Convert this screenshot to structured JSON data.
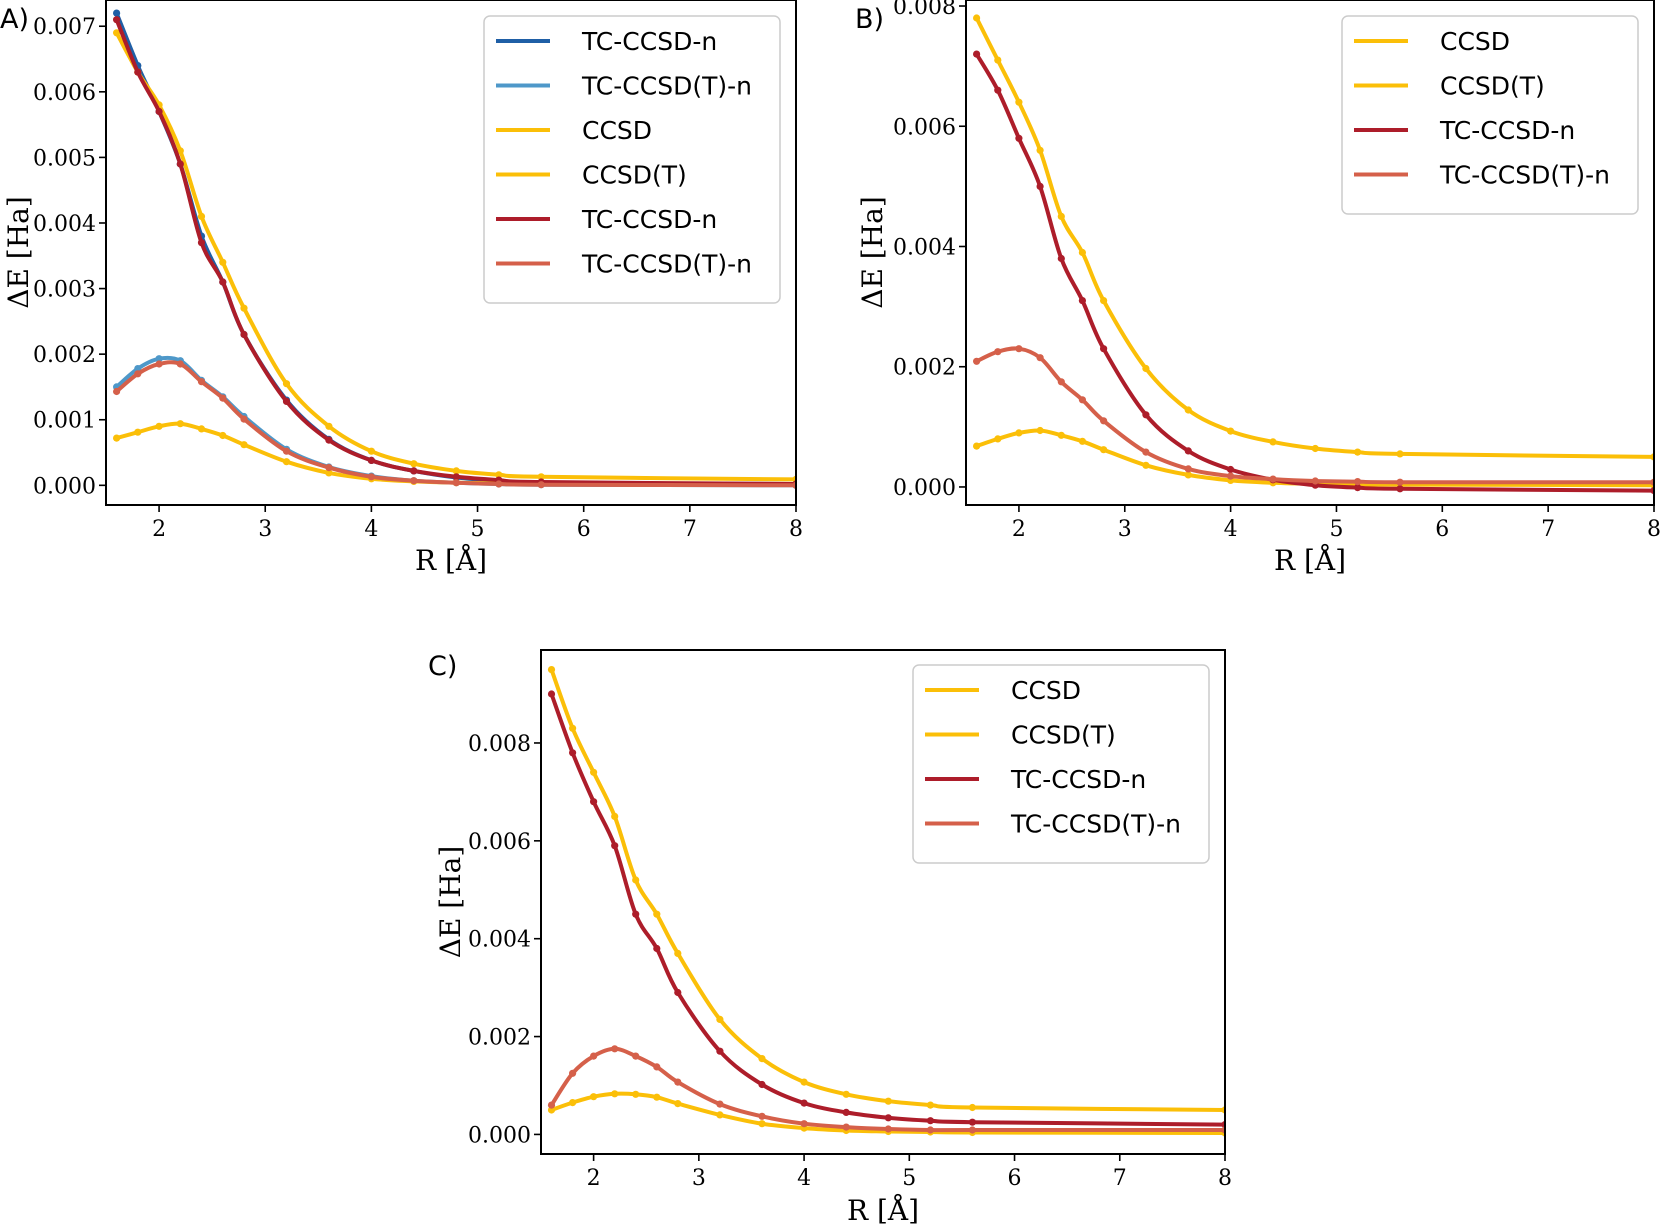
{
  "chart_data": [
    {
      "id": "A",
      "type": "line",
      "panel_label": "A)",
      "xlabel": "R [Å]",
      "ylabel": "ΔE [Ha]",
      "xlim": [
        1.5,
        8
      ],
      "ylim": [
        -0.0003,
        0.0074
      ],
      "xticks": [
        2,
        3,
        4,
        5,
        6,
        7,
        8
      ],
      "xtick_labels": [
        "2",
        "3",
        "4",
        "5",
        "6",
        "7",
        "8"
      ],
      "yticks": [
        0,
        0.001,
        0.002,
        0.003,
        0.004,
        0.005,
        0.006,
        0.007
      ],
      "ytick_labels": [
        "0.000",
        "0.001",
        "0.002",
        "0.003",
        "0.004",
        "0.005",
        "0.006",
        "0.007"
      ],
      "legend_position": "top-right",
      "series": [
        {
          "name": "TC-CCSD-n",
          "color": "#1f5fa6",
          "x": [
            1.6,
            1.8,
            2.0,
            2.2,
            2.4,
            2.6,
            2.8,
            3.2,
            3.6,
            4.0,
            4.4,
            4.8,
            5.2,
            5.6,
            8.0
          ],
          "y": [
            0.0072,
            0.0064,
            0.0057,
            0.0049,
            0.0038,
            0.0031,
            0.0023,
            0.0013,
            0.0007,
            0.00038,
            0.00022,
            0.00012,
            7e-05,
            4e-05,
            2e-05
          ]
        },
        {
          "name": "TC-CCSD(T)-n",
          "color": "#4e98c9",
          "x": [
            1.6,
            1.8,
            2.0,
            2.2,
            2.4,
            2.6,
            2.8,
            3.2,
            3.6,
            4.0,
            4.4,
            4.8,
            5.2,
            5.6,
            8.0
          ],
          "y": [
            0.0015,
            0.00178,
            0.00193,
            0.0019,
            0.0016,
            0.00135,
            0.00105,
            0.00055,
            0.00028,
            0.00014,
            7e-05,
            4e-05,
            2e-05,
            1e-05,
            0.0
          ]
        },
        {
          "name": "CCSD",
          "color": "#fbbf08",
          "x": [
            1.6,
            1.8,
            2.0,
            2.2,
            2.4,
            2.6,
            2.8,
            3.2,
            3.6,
            4.0,
            4.4,
            4.8,
            5.2,
            5.6,
            8.0
          ],
          "y": [
            0.0069,
            0.0063,
            0.0058,
            0.0051,
            0.0041,
            0.0034,
            0.0027,
            0.00155,
            0.0009,
            0.00052,
            0.00033,
            0.00022,
            0.00016,
            0.00013,
            9e-05
          ]
        },
        {
          "name": "CCSD(T)",
          "color": "#fbbf08",
          "x": [
            1.6,
            1.8,
            2.0,
            2.2,
            2.4,
            2.6,
            2.8,
            3.2,
            3.6,
            4.0,
            4.4,
            4.8,
            5.2,
            5.6,
            8.0
          ],
          "y": [
            0.00072,
            0.00081,
            0.0009,
            0.00094,
            0.00086,
            0.00076,
            0.00062,
            0.00036,
            0.00019,
            0.0001,
            6e-05,
            4e-05,
            3e-05,
            2e-05,
            1e-05
          ]
        },
        {
          "name": "TC-CCSD-n",
          "color": "#ad1d2a",
          "x": [
            1.6,
            1.8,
            2.0,
            2.2,
            2.4,
            2.6,
            2.8,
            3.2,
            3.6,
            4.0,
            4.4,
            4.8,
            5.2,
            5.6,
            8.0
          ],
          "y": [
            0.0071,
            0.0063,
            0.0057,
            0.0049,
            0.0037,
            0.0031,
            0.0023,
            0.00128,
            0.00069,
            0.00038,
            0.00022,
            0.00013,
            8e-05,
            5e-05,
            2e-05
          ]
        },
        {
          "name": "TC-CCSD(T)-n",
          "color": "#d5604a",
          "x": [
            1.6,
            1.8,
            2.0,
            2.2,
            2.4,
            2.6,
            2.8,
            3.2,
            3.6,
            4.0,
            4.4,
            4.8,
            5.2,
            5.6,
            8.0
          ],
          "y": [
            0.00143,
            0.0017,
            0.00185,
            0.00185,
            0.00158,
            0.00133,
            0.00101,
            0.00052,
            0.00027,
            0.00013,
            7e-05,
            4e-05,
            2e-05,
            1e-05,
            0.0
          ]
        }
      ]
    },
    {
      "id": "B",
      "type": "line",
      "panel_label": "B)",
      "xlabel": "R [Å]",
      "ylabel": "ΔE [Ha]",
      "xlim": [
        1.5,
        8
      ],
      "ylim": [
        -0.0003,
        0.0081
      ],
      "xticks": [
        2,
        3,
        4,
        5,
        6,
        7,
        8
      ],
      "xtick_labels": [
        "2",
        "3",
        "4",
        "5",
        "6",
        "7",
        "8"
      ],
      "yticks": [
        0,
        0.002,
        0.004,
        0.006,
        0.008
      ],
      "ytick_labels": [
        "0.000",
        "0.002",
        "0.004",
        "0.006",
        "0.008"
      ],
      "legend_position": "top-right",
      "series": [
        {
          "name": "CCSD",
          "color": "#fbbf08",
          "x": [
            1.6,
            1.8,
            2.0,
            2.2,
            2.4,
            2.6,
            2.8,
            3.2,
            3.6,
            4.0,
            4.4,
            4.8,
            5.2,
            5.6,
            8.0
          ],
          "y": [
            0.0078,
            0.0071,
            0.0064,
            0.0056,
            0.0045,
            0.0039,
            0.0031,
            0.00197,
            0.00128,
            0.00093,
            0.00075,
            0.00064,
            0.00058,
            0.00055,
            0.0005
          ]
        },
        {
          "name": "CCSD(T)",
          "color": "#fbbf08",
          "x": [
            1.6,
            1.8,
            2.0,
            2.2,
            2.4,
            2.6,
            2.8,
            3.2,
            3.6,
            4.0,
            4.4,
            4.8,
            5.2,
            5.6,
            8.0
          ],
          "y": [
            0.00068,
            0.0008,
            0.0009,
            0.00094,
            0.00086,
            0.00076,
            0.00062,
            0.00036,
            0.0002,
            0.00011,
            7e-05,
            5e-05,
            4e-05,
            4e-05,
            3e-05
          ]
        },
        {
          "name": "TC-CCSD-n",
          "color": "#ad1d2a",
          "x": [
            1.6,
            1.8,
            2.0,
            2.2,
            2.4,
            2.6,
            2.8,
            3.2,
            3.6,
            4.0,
            4.4,
            4.8,
            5.2,
            5.6,
            8.0
          ],
          "y": [
            0.0072,
            0.0066,
            0.0058,
            0.005,
            0.0038,
            0.0031,
            0.0023,
            0.0012,
            0.0006,
            0.00029,
            0.00012,
            3e-05,
            -1e-05,
            -3e-05,
            -6e-05
          ]
        },
        {
          "name": "TC-CCSD(T)-n",
          "color": "#d5604a",
          "x": [
            1.6,
            1.8,
            2.0,
            2.2,
            2.4,
            2.6,
            2.8,
            3.2,
            3.6,
            4.0,
            4.4,
            4.8,
            5.2,
            5.6,
            8.0
          ],
          "y": [
            0.00209,
            0.00225,
            0.0023,
            0.00215,
            0.00175,
            0.00145,
            0.0011,
            0.00058,
            0.0003,
            0.00018,
            0.00013,
            0.0001,
            9e-05,
            8e-05,
            8e-05
          ]
        }
      ]
    },
    {
      "id": "C",
      "type": "line",
      "panel_label": "C)",
      "xlabel": "R [Å]",
      "ylabel": "ΔE [Ha]",
      "xlim": [
        1.5,
        8
      ],
      "ylim": [
        -0.0004,
        0.0099
      ],
      "xticks": [
        2,
        3,
        4,
        5,
        6,
        7,
        8
      ],
      "xtick_labels": [
        "2",
        "3",
        "4",
        "5",
        "6",
        "7",
        "8"
      ],
      "yticks": [
        0,
        0.002,
        0.004,
        0.006,
        0.008
      ],
      "ytick_labels": [
        "0.000",
        "0.002",
        "0.004",
        "0.006",
        "0.008"
      ],
      "legend_position": "top-right",
      "series": [
        {
          "name": "CCSD",
          "color": "#fbbf08",
          "x": [
            1.6,
            1.8,
            2.0,
            2.2,
            2.4,
            2.6,
            2.8,
            3.2,
            3.6,
            4.0,
            4.4,
            4.8,
            5.2,
            5.6,
            8.0
          ],
          "y": [
            0.0095,
            0.0083,
            0.0074,
            0.0065,
            0.0052,
            0.0045,
            0.0037,
            0.00235,
            0.00155,
            0.00107,
            0.00082,
            0.00068,
            0.0006,
            0.00055,
            0.0005
          ]
        },
        {
          "name": "CCSD(T)",
          "color": "#fbbf08",
          "x": [
            1.6,
            1.8,
            2.0,
            2.2,
            2.4,
            2.6,
            2.8,
            3.2,
            3.6,
            4.0,
            4.4,
            4.8,
            5.2,
            5.6,
            8.0
          ],
          "y": [
            0.0005,
            0.00065,
            0.00077,
            0.00083,
            0.00082,
            0.00076,
            0.00063,
            0.0004,
            0.00022,
            0.00013,
            8e-05,
            6e-05,
            5e-05,
            4e-05,
            3e-05
          ]
        },
        {
          "name": "TC-CCSD-n",
          "color": "#ad1d2a",
          "x": [
            1.6,
            1.8,
            2.0,
            2.2,
            2.4,
            2.6,
            2.8,
            3.2,
            3.6,
            4.0,
            4.4,
            4.8,
            5.2,
            5.6,
            8.0
          ],
          "y": [
            0.009,
            0.0078,
            0.0068,
            0.0059,
            0.0045,
            0.0038,
            0.0029,
            0.0017,
            0.00102,
            0.00064,
            0.00045,
            0.00034,
            0.00028,
            0.00025,
            0.0002
          ]
        },
        {
          "name": "TC-CCSD(T)-n",
          "color": "#d5604a",
          "x": [
            1.6,
            1.8,
            2.0,
            2.2,
            2.4,
            2.6,
            2.8,
            3.2,
            3.6,
            4.0,
            4.4,
            4.8,
            5.2,
            5.6,
            8.0
          ],
          "y": [
            0.0006,
            0.00125,
            0.0016,
            0.00175,
            0.0016,
            0.00138,
            0.00107,
            0.00062,
            0.00037,
            0.00022,
            0.00015,
            0.00011,
            9e-05,
            9e-05,
            9e-05
          ]
        }
      ]
    }
  ]
}
